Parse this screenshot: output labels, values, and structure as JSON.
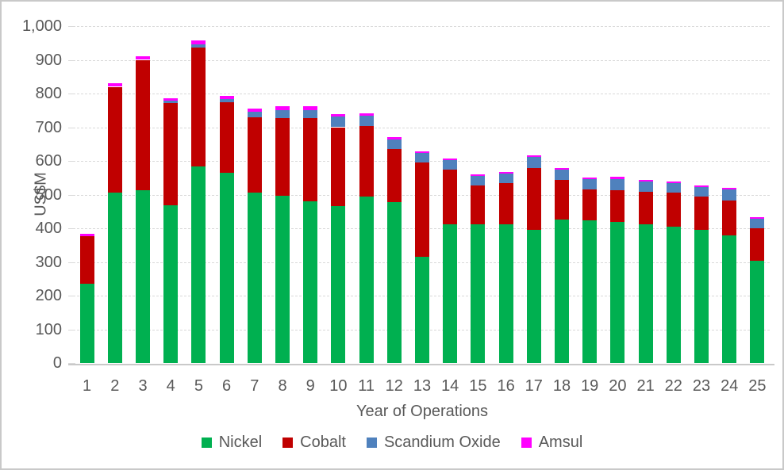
{
  "chart_data": {
    "type": "bar",
    "stacked": true,
    "title": "",
    "xlabel": "Year of Operations",
    "ylabel": "US$M",
    "ylim": [
      0,
      1000
    ],
    "ytick_interval": 100,
    "ytick_labels": [
      "0",
      "100",
      "200",
      "300",
      "400",
      "500",
      "600",
      "700",
      "800",
      "900",
      "1,000"
    ],
    "grid": "horizontal-dashed",
    "legend_position": "bottom",
    "categories": [
      "1",
      "2",
      "3",
      "4",
      "5",
      "6",
      "7",
      "8",
      "9",
      "10",
      "11",
      "12",
      "13",
      "14",
      "15",
      "16",
      "17",
      "18",
      "19",
      "20",
      "21",
      "22",
      "23",
      "24",
      "25"
    ],
    "series": [
      {
        "name": "Nickel",
        "color": "#00B050",
        "values": [
          235,
          505,
          512,
          468,
          584,
          565,
          505,
          497,
          480,
          467,
          493,
          478,
          315,
          412,
          412,
          412,
          396,
          426,
          423,
          419,
          412,
          405,
          395,
          379,
          304
        ]
      },
      {
        "name": "Cobalt",
        "color": "#C00000",
        "values": [
          142,
          315,
          388,
          303,
          352,
          210,
          224,
          231,
          248,
          233,
          210,
          157,
          280,
          162,
          116,
          122,
          182,
          118,
          93,
          95,
          97,
          100,
          100,
          104,
          95
        ]
      },
      {
        "name": "Scandium Oxide",
        "color": "#4F81BD",
        "values": [
          0,
          0,
          0,
          7,
          9,
          9,
          18,
          23,
          23,
          31,
          30,
          29,
          28,
          29,
          28,
          29,
          33,
          31,
          30,
          33,
          30,
          30,
          28,
          33,
          30
        ]
      },
      {
        "name": "Amsul",
        "color": "#FF00FF",
        "values": [
          7,
          11,
          11,
          8,
          12,
          9,
          8,
          11,
          11,
          9,
          9,
          7,
          6,
          4,
          4,
          4,
          5,
          4,
          4,
          5,
          4,
          4,
          4,
          4,
          4
        ]
      }
    ]
  },
  "style_colors": {
    "gridline": "#D9D9D9",
    "axis_line": "#C9C9C9",
    "text": "#595959",
    "frame_border": "#C9C9C9",
    "background": "#FFFFFF"
  }
}
